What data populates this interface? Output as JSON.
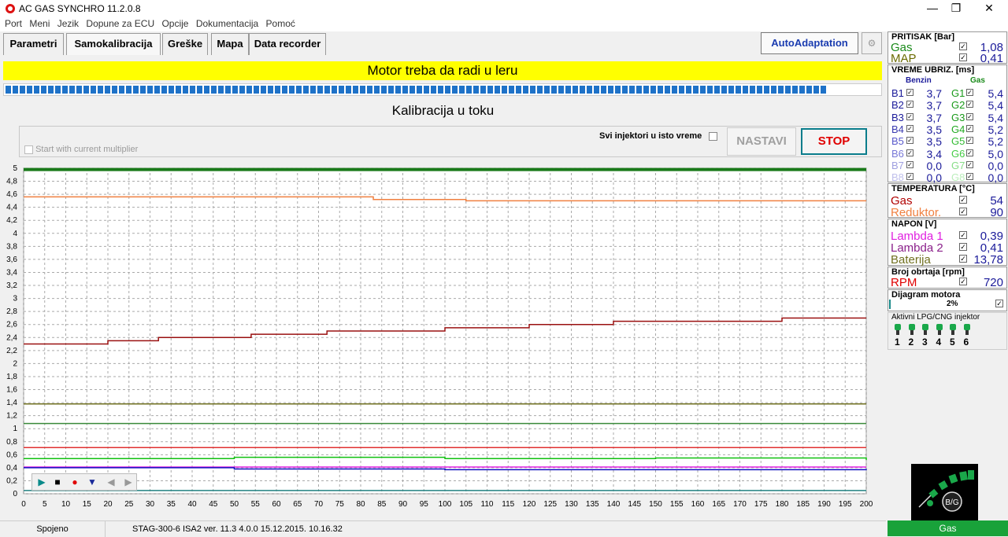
{
  "window": {
    "title": "AC GAS SYNCHRO  11.2.0.8"
  },
  "menu": [
    "Port",
    "Meni",
    "Jezik",
    "Dopune za ECU",
    "Opcije",
    "Dokumentacija",
    "Pomoć"
  ],
  "tabs": [
    "Parametri",
    "Samokalibracija",
    "Greške",
    "Mapa",
    "Data recorder"
  ],
  "autoadaptation_label": "AutoAdaptation",
  "banner": "Motor treba da radi u leru",
  "progress_fraction": 0.94,
  "calibration_status": "Kalibracija u toku",
  "options": {
    "start_with_label": "Start with current multiplier",
    "svi_injektori_label": "Svi injektori u isto vreme",
    "nastavi_label": "NASTAVI",
    "stop_label": "STOP"
  },
  "status_bar": {
    "connection": "Spojeno",
    "info": "STAG-300-6 ISA2   ver. 11.3  4.0.0    15.12.2015. 10.16.32"
  },
  "pritisak": {
    "header": "PRITISAK [Bar]",
    "rows": [
      {
        "label": "Gas",
        "value": "1,08",
        "color": "#1a8a1a"
      },
      {
        "label": "MAP",
        "value": "0,41",
        "color": "#6b6b00"
      }
    ]
  },
  "vreme": {
    "header": "VREME UBRIZ. [ms]",
    "col_benzin": "Benzin",
    "col_gas": "Gas",
    "benzin": [
      {
        "label": "B1",
        "value": "3,7"
      },
      {
        "label": "B2",
        "value": "3,7"
      },
      {
        "label": "B3",
        "value": "3,7"
      },
      {
        "label": "B4",
        "value": "3,5"
      },
      {
        "label": "B5",
        "value": "3,5"
      },
      {
        "label": "B6",
        "value": "3,4"
      },
      {
        "label": "B7",
        "value": "0,0"
      },
      {
        "label": "B8",
        "value": "0,0"
      }
    ],
    "gas": [
      {
        "label": "G1",
        "value": "5,4"
      },
      {
        "label": "G2",
        "value": "5,4"
      },
      {
        "label": "G3",
        "value": "5,4"
      },
      {
        "label": "G4",
        "value": "5,2"
      },
      {
        "label": "G5",
        "value": "5,2"
      },
      {
        "label": "G6",
        "value": "5,0"
      },
      {
        "label": "G7",
        "value": "0,0"
      },
      {
        "label": "G8",
        "value": "0,0"
      }
    ]
  },
  "temperatura": {
    "header": "TEMPERATURA  [°C]",
    "rows": [
      {
        "label": "Gas",
        "value": "54",
        "color": "#b00000"
      },
      {
        "label": "Reduktor.",
        "value": "90",
        "color": "#f08040"
      }
    ]
  },
  "napon": {
    "header": "NAPON [V]",
    "rows": [
      {
        "label": "Lambda 1",
        "value": "0,39",
        "color": "#e020e0"
      },
      {
        "label": "Lambda 2",
        "value": "0,41",
        "color": "#8a208a"
      },
      {
        "label": "Baterija",
        "value": "13,78",
        "color": "#707020"
      }
    ]
  },
  "rpm": {
    "header": "Broj obrtaja [rpm]",
    "label": "RPM",
    "value": "720",
    "color": "#e00000"
  },
  "dijagram": {
    "header": "Dijagram motora",
    "value": "2%"
  },
  "aktivni": {
    "header": "Aktivni LPG/CNG injektor",
    "numbers": [
      "1",
      "2",
      "3",
      "4",
      "5",
      "6"
    ]
  },
  "gauge": {
    "label": "B/G"
  },
  "gas_mode_label": "Gas",
  "chart_data": {
    "type": "line",
    "x_ticks": [
      0,
      5,
      10,
      15,
      20,
      25,
      30,
      35,
      40,
      45,
      50,
      55,
      60,
      65,
      70,
      75,
      80,
      85,
      90,
      95,
      100,
      105,
      110,
      115,
      120,
      125,
      130,
      135,
      140,
      145,
      150,
      155,
      160,
      165,
      170,
      175,
      180,
      185,
      190,
      195,
      200
    ],
    "y_ticks": [
      "0",
      "0,2",
      "0,4",
      "0,6",
      "0,8",
      "1",
      "1,2",
      "1,4",
      "1,6",
      "1,8",
      "2",
      "2,2",
      "2,4",
      "2,6",
      "2,8",
      "3",
      "3,2",
      "3,4",
      "3,6",
      "3,8",
      "4",
      "4,2",
      "4,4",
      "4,6",
      "4,8",
      "5"
    ],
    "xlim": [
      0,
      200
    ],
    "ylim": [
      0,
      5
    ],
    "grid": true,
    "series": [
      {
        "color": "#f08040",
        "x": [
          0,
          81,
          83,
          88,
          96,
          105,
          112,
          200
        ],
        "values": [
          4.56,
          4.56,
          4.52,
          4.52,
          4.52,
          4.5,
          4.5,
          4.5
        ]
      },
      {
        "color": "#9a1010",
        "x": [
          0,
          20,
          32,
          54,
          72,
          100,
          120,
          140,
          180,
          200
        ],
        "values": [
          2.3,
          2.35,
          2.4,
          2.45,
          2.5,
          2.55,
          2.6,
          2.65,
          2.7,
          2.7
        ]
      },
      {
        "color": "#707020",
        "x": [
          0,
          200
        ],
        "values": [
          1.38,
          1.38
        ]
      },
      {
        "color": "#3a8a3a",
        "x": [
          0,
          200
        ],
        "values": [
          1.08,
          1.08
        ]
      },
      {
        "color": "#e03030",
        "x": [
          0,
          200
        ],
        "values": [
          0.71,
          0.71
        ]
      },
      {
        "color": "#10c010",
        "x": [
          0,
          50,
          100,
          150,
          200
        ],
        "values": [
          0.54,
          0.56,
          0.54,
          0.55,
          0.52
        ]
      },
      {
        "color": "#e020e0",
        "x": [
          0,
          200
        ],
        "values": [
          0.41,
          0.41
        ]
      },
      {
        "color": "#1010c0",
        "x": [
          0,
          50,
          100,
          150,
          200
        ],
        "values": [
          0.4,
          0.38,
          0.37,
          0.37,
          0.38
        ]
      },
      {
        "color": "#208080",
        "x": [
          0,
          200
        ],
        "values": [
          0.05,
          0.05
        ]
      },
      {
        "color": "#1a7a1a",
        "x": [
          0,
          200
        ],
        "values": [
          4.98,
          4.98
        ]
      }
    ]
  }
}
